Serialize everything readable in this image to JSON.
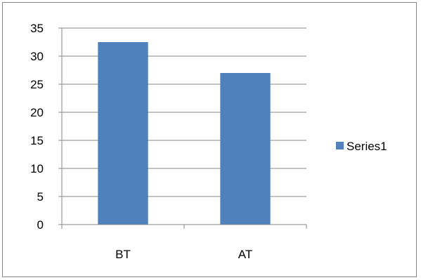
{
  "chart_data": {
    "type": "bar",
    "categories": [
      "BT",
      "AT"
    ],
    "series": [
      {
        "name": "Series1",
        "values": [
          32.5,
          27
        ],
        "color": "#4f81bd"
      }
    ],
    "ylim": [
      0,
      35
    ],
    "yticks": [
      0,
      5,
      10,
      15,
      20,
      25,
      30,
      35
    ],
    "grid": true,
    "legend_position": "right"
  },
  "legend": {
    "label": "Series1"
  }
}
